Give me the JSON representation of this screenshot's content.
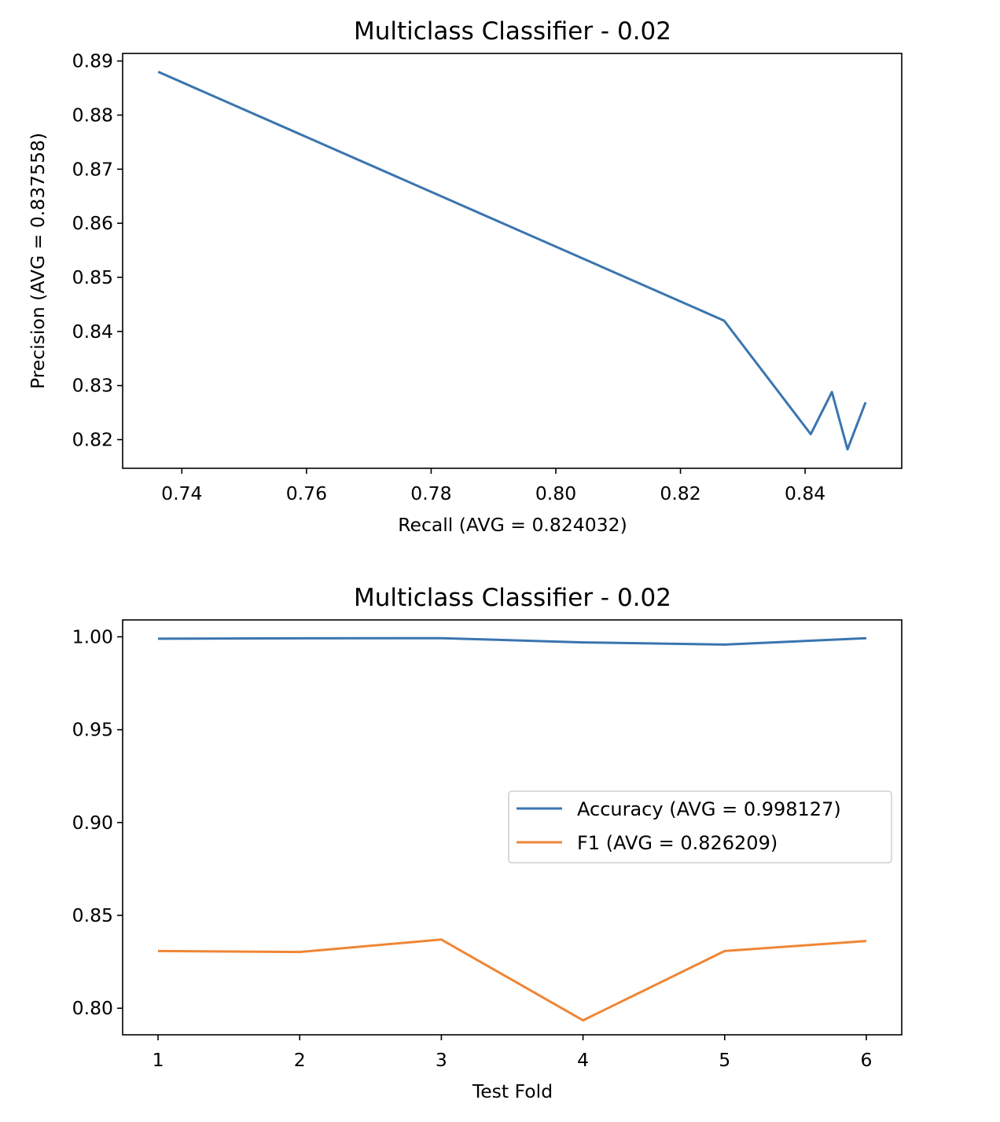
{
  "chart_data": [
    {
      "type": "line",
      "title": "Multiclass Classifier - 0.02",
      "xlabel": "Recall (AVG = 0.824032)",
      "ylabel": "Precision (AVG = 0.837558)",
      "xlim": [
        0.7305,
        0.8555
      ],
      "ylim": [
        0.8147,
        0.8914
      ],
      "xticks": [
        0.74,
        0.76,
        0.78,
        0.8,
        0.82,
        0.84
      ],
      "xtick_labels": [
        "0.74",
        "0.76",
        "0.78",
        "0.80",
        "0.82",
        "0.84"
      ],
      "yticks": [
        0.82,
        0.83,
        0.84,
        0.85,
        0.86,
        0.87,
        0.88,
        0.89
      ],
      "ytick_labels": [
        "0.82",
        "0.83",
        "0.84",
        "0.85",
        "0.86",
        "0.87",
        "0.88",
        "0.89"
      ],
      "grid": false,
      "series": [
        {
          "color": "#3a75af",
          "points": [
            [
              0.7362,
              0.888
            ],
            [
              0.827,
              0.842
            ],
            [
              0.8409,
              0.821
            ],
            [
              0.8443,
              0.8288
            ],
            [
              0.8468,
              0.8182
            ],
            [
              0.8497,
              0.8269
            ]
          ]
        }
      ]
    },
    {
      "type": "line",
      "title": "Multiclass Classifier - 0.02",
      "xlabel": "Test Fold",
      "ylabel": "",
      "xlim": [
        0.75,
        6.25
      ],
      "ylim": [
        0.7857,
        1.0091
      ],
      "xticks": [
        1,
        2,
        3,
        4,
        5,
        6
      ],
      "xtick_labels": [
        "1",
        "2",
        "3",
        "4",
        "5",
        "6"
      ],
      "yticks": [
        0.8,
        0.85,
        0.9,
        0.95,
        1.0
      ],
      "ytick_labels": [
        "0.80",
        "0.85",
        "0.90",
        "0.95",
        "1.00"
      ],
      "grid": false,
      "legend": "center-right",
      "series": [
        {
          "name": "Accuracy (AVG = 0.998127)",
          "color": "#3a75af",
          "x": [
            1,
            2,
            3,
            4,
            5,
            6
          ],
          "values": [
            0.999,
            0.9992,
            0.9993,
            0.997,
            0.9958,
            0.9993
          ]
        },
        {
          "name": "F1 (AVG = 0.826209)",
          "color": "#ef8636",
          "x": [
            1,
            2,
            3,
            4,
            5,
            6
          ],
          "values": [
            0.8308,
            0.8303,
            0.837,
            0.7935,
            0.8308,
            0.8362
          ]
        }
      ]
    }
  ]
}
